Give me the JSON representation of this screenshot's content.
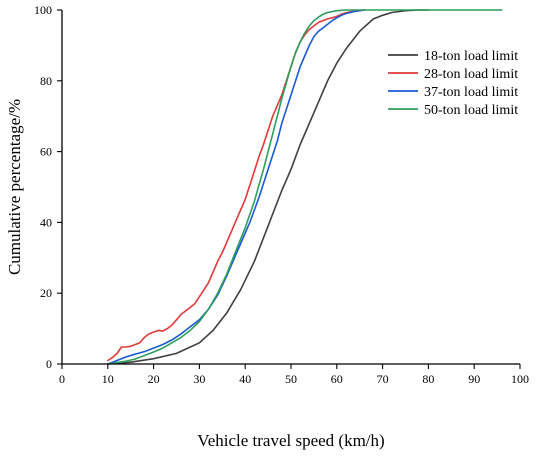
{
  "chart_data": {
    "type": "line",
    "title": "",
    "xlabel": "Vehicle travel speed (km/h)",
    "ylabel": "Cumulative percentage/%",
    "xlim": [
      0,
      100
    ],
    "ylim": [
      0,
      100
    ],
    "x_ticks": [
      "0",
      "10",
      "20",
      "30",
      "40",
      "50",
      "60",
      "70",
      "80",
      "90",
      "100"
    ],
    "y_ticks": [
      "0",
      "20",
      "40",
      "60",
      "80",
      "100"
    ],
    "grid": false,
    "legend_position": "top-right",
    "series": [
      {
        "name": "18-ton load limit",
        "color": "#404040",
        "x": [
          10,
          15,
          20,
          25,
          30,
          33,
          36,
          39,
          42,
          45,
          48,
          50,
          52,
          55,
          58,
          60,
          62,
          65,
          68,
          70,
          72,
          75,
          78,
          80
        ],
        "y": [
          0,
          0.5,
          1.5,
          3,
          6,
          9.5,
          14.5,
          21,
          29,
          39,
          49,
          55,
          62,
          71,
          80,
          85,
          89,
          94,
          97.5,
          98.5,
          99.3,
          99.8,
          100,
          100
        ]
      },
      {
        "name": "28-ton load limit",
        "color": "#e03a3a",
        "x": [
          10,
          11,
          12,
          13,
          14,
          15,
          16,
          17,
          18,
          19,
          20,
          21,
          22,
          23,
          24,
          25,
          26,
          27,
          28,
          29,
          30,
          31,
          32,
          33,
          34,
          35,
          36,
          37,
          38,
          39,
          40,
          41,
          42,
          43,
          44,
          45,
          46,
          47,
          48,
          49,
          50,
          51,
          52,
          53,
          54,
          55,
          56,
          57,
          58,
          59,
          60,
          61,
          62,
          63,
          64,
          65,
          66
        ],
        "y": [
          1,
          1.8,
          3,
          4.8,
          4.8,
          5,
          5.5,
          6,
          7.5,
          8.5,
          9,
          9.5,
          9.3,
          10,
          11,
          12.5,
          14,
          15,
          16,
          17,
          19,
          21,
          23,
          26,
          29,
          31.5,
          34.5,
          37.5,
          40.5,
          43.5,
          46.5,
          50.5,
          54.5,
          58.5,
          62,
          66,
          70,
          73,
          76,
          80,
          84,
          88,
          91,
          93,
          94.5,
          95.5,
          96.5,
          97,
          97.5,
          97.8,
          98.2,
          98.8,
          99.2,
          99.5,
          99.7,
          99.9,
          100
        ]
      },
      {
        "name": "37-ton load limit",
        "color": "#1a5ad6",
        "x": [
          10,
          12,
          14,
          16,
          18,
          20,
          22,
          24,
          26,
          28,
          30,
          32,
          34,
          36,
          38,
          40,
          41,
          42,
          43,
          44,
          45,
          46,
          47,
          48,
          49,
          50,
          51,
          52,
          53,
          54,
          55,
          56,
          57,
          58,
          59,
          60,
          61,
          62,
          63,
          64,
          65,
          66
        ],
        "y": [
          0,
          1,
          2,
          2.8,
          3.5,
          4.5,
          5.5,
          6.8,
          8.5,
          10.5,
          12.5,
          15.5,
          19.5,
          25,
          31,
          37,
          40,
          43.5,
          47,
          51,
          55,
          59,
          63,
          68,
          72,
          76,
          80,
          84,
          87,
          90,
          92.5,
          94,
          95,
          96,
          97,
          97.8,
          98.5,
          99,
          99.3,
          99.6,
          99.8,
          100
        ]
      },
      {
        "name": "50-ton load limit",
        "color": "#2e9e5c",
        "x": [
          10,
          12,
          14,
          16,
          18,
          20,
          22,
          24,
          26,
          28,
          30,
          32,
          34,
          36,
          38,
          40,
          42,
          44,
          45,
          46,
          47,
          48,
          49,
          50,
          51,
          52,
          53,
          54,
          55,
          56,
          57,
          58,
          60,
          62,
          64,
          70,
          80,
          90,
          96
        ],
        "y": [
          0,
          0.4,
          0.8,
          1.4,
          2.4,
          3.4,
          4.5,
          6,
          7.5,
          9.5,
          12,
          15.5,
          20,
          25.5,
          32,
          38.5,
          46,
          55,
          60,
          65,
          70,
          75,
          79.5,
          84,
          88,
          91,
          93.5,
          95.5,
          97,
          98,
          98.8,
          99.3,
          99.8,
          100,
          100,
          100,
          100,
          100,
          100
        ]
      }
    ]
  }
}
